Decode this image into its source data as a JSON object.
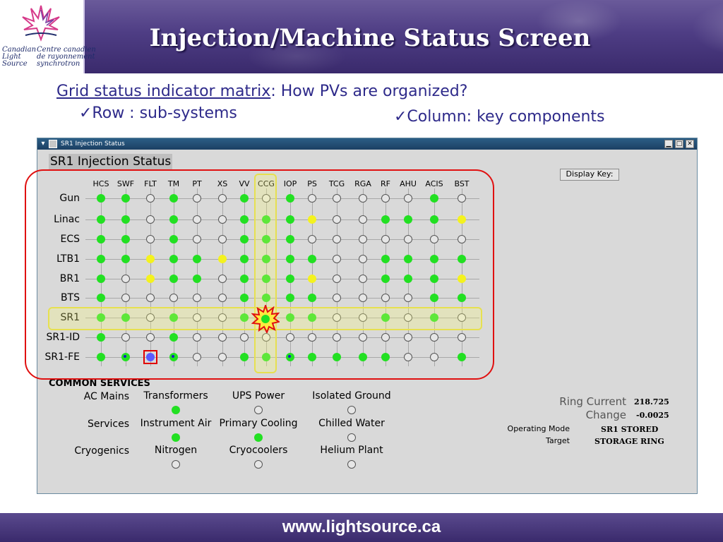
{
  "slide": {
    "title": "Injection/Machine Status Screen",
    "logo_en": "Canadian\nLight\nSource",
    "logo_fr": "Centre canadien\nde rayonnement\nsynchrotron",
    "subtitle_link": "Grid status indicator matrix",
    "subtitle_rest": ": How PVs are organized?",
    "row_note": "✓Row : sub-systems",
    "col_note": "✓Column: key components",
    "footer_url": "www.lightsource.ca"
  },
  "window": {
    "title": "SR1 Injection Status",
    "panel_title": "SR1 Injection Status",
    "display_key_label": "Display Key:",
    "minimize_glyph": "▁",
    "maximize_glyph": "□",
    "close_glyph": "✕",
    "menu_glyph": "▾"
  },
  "grid": {
    "columns": [
      "HCS",
      "SWF",
      "FLT",
      "TM",
      "PT",
      "XS",
      "VV",
      "CCG",
      "IOP",
      "PS",
      "TCG",
      "RGA",
      "RF",
      "AHU",
      "ACIS",
      "BST"
    ],
    "rows": [
      {
        "label": "Gun",
        "states": [
          "g",
          "g",
          "o",
          "g",
          "o",
          "o",
          "g",
          "o",
          "g",
          "o",
          "o",
          "o",
          "o",
          "o",
          "g",
          "o"
        ]
      },
      {
        "label": "Linac",
        "states": [
          "g",
          "g",
          "o",
          "g",
          "o",
          "o",
          "g",
          "g",
          "g",
          "y",
          "o",
          "o",
          "g",
          "g",
          "g",
          "y"
        ]
      },
      {
        "label": "ECS",
        "states": [
          "g",
          "g",
          "o",
          "g",
          "o",
          "o",
          "g",
          "g",
          "g",
          "o",
          "o",
          "o",
          "o",
          "o",
          "o",
          "o"
        ]
      },
      {
        "label": "LTB1",
        "states": [
          "g",
          "g",
          "y",
          "g",
          "g",
          "y",
          "g",
          "g",
          "g",
          "g",
          "o",
          "o",
          "g",
          "g",
          "g",
          "g"
        ]
      },
      {
        "label": "BR1",
        "states": [
          "g",
          "o",
          "y",
          "g",
          "g",
          "o",
          "g",
          "g",
          "g",
          "y",
          "o",
          "o",
          "g",
          "g",
          "g",
          "y"
        ]
      },
      {
        "label": "BTS",
        "states": [
          "g",
          "o",
          "o",
          "o",
          "o",
          "o",
          "g",
          "g",
          "g",
          "g",
          "o",
          "o",
          "o",
          "o",
          "g",
          "g"
        ]
      },
      {
        "label": "SR1",
        "states": [
          "g",
          "g",
          "o",
          "g",
          "o",
          "o",
          "g",
          "g",
          "g",
          "g",
          "o",
          "o",
          "g",
          "o",
          "g",
          "o"
        ]
      },
      {
        "label": "SR1-ID",
        "states": [
          "g",
          "o",
          "o",
          "g",
          "o",
          "o",
          "o",
          "o",
          "o",
          "o",
          "o",
          "o",
          "o",
          "o",
          "o",
          "o"
        ]
      },
      {
        "label": "SR1-FE",
        "states": [
          "g",
          "b",
          "x",
          "b",
          "o",
          "o",
          "g",
          "g",
          "b",
          "g",
          "g",
          "g",
          "g",
          "o",
          "o",
          "g"
        ]
      }
    ]
  },
  "common_services": {
    "header": "COMMON SERVICES",
    "row_labels": [
      "AC Mains",
      "Services",
      "Cryogenics"
    ],
    "items": [
      {
        "label": "Transformers",
        "state": "g"
      },
      {
        "label": "UPS Power",
        "state": "o"
      },
      {
        "label": "Isolated Ground",
        "state": "o"
      },
      {
        "label": "Instrument Air",
        "state": "g"
      },
      {
        "label": "Primary Cooling",
        "state": "g"
      },
      {
        "label": "Chilled Water",
        "state": "o"
      },
      {
        "label": "Nitrogen",
        "state": "o"
      },
      {
        "label": "Cryocoolers",
        "state": "o"
      },
      {
        "label": "Helium Plant",
        "state": "o"
      }
    ]
  },
  "ring": {
    "current_label": "Ring Current",
    "current_value": "218.725",
    "change_label": "Change",
    "change_value": "-0.0025",
    "mode_label": "Operating Mode",
    "mode_value": "SR1 STORED",
    "target_label": "Target",
    "target_value": "STORAGE RING"
  },
  "colors": {
    "green": "#22e022",
    "yellow": "#f4f21e",
    "off": "#e6e6e6",
    "highlight_red": "#e01010",
    "highlight_yellow": "#e6e050"
  }
}
